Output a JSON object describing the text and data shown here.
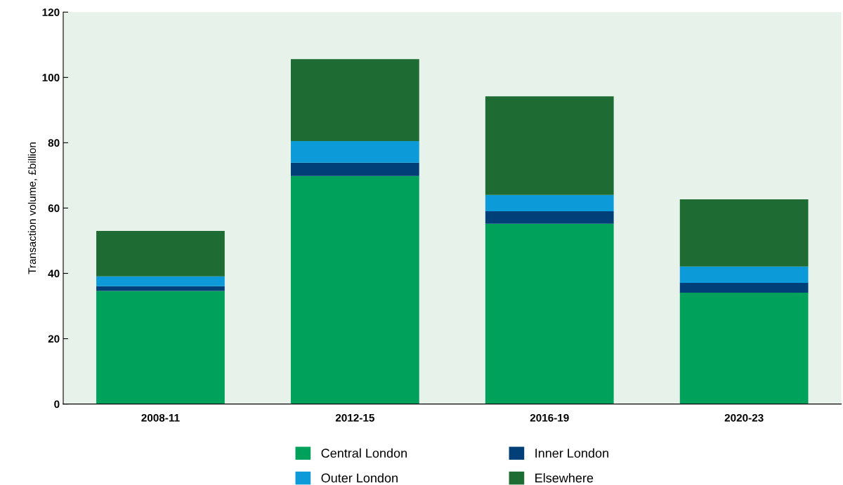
{
  "chart_data": {
    "type": "bar",
    "stacked": true,
    "ylabel": "Transaction volume, £billion",
    "categories": [
      "2008-11",
      "2012-15",
      "2016-19",
      "2020-23"
    ],
    "series": [
      {
        "name": "Central London",
        "color": "#00a15b",
        "values": [
          34.6,
          69.8,
          55.2,
          34.1
        ]
      },
      {
        "name": "Inner London",
        "color": "#003f78",
        "values": [
          1.5,
          4.1,
          3.8,
          3.0
        ]
      },
      {
        "name": "Outer London",
        "color": "#0c9bd8",
        "values": [
          3.0,
          6.6,
          5.0,
          5.0
        ]
      },
      {
        "name": "Elsewhere",
        "color": "#1e6b33",
        "values": [
          13.9,
          25.1,
          30.2,
          20.6
        ]
      }
    ],
    "ylim": [
      0,
      120
    ],
    "yticks": [
      0,
      20,
      40,
      60,
      80,
      100,
      120
    ],
    "grid": false,
    "legend": "bottom"
  }
}
